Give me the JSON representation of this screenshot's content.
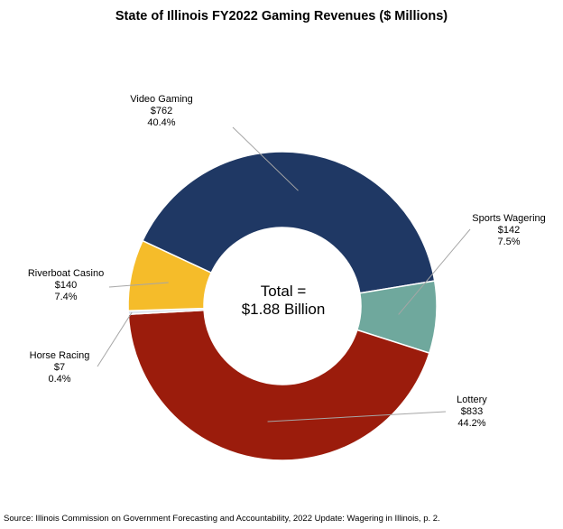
{
  "chart_data": {
    "type": "pie",
    "title": "State of Illinois FY2022 Gaming Revenues ($ Millions)",
    "center_label_line1": "Total =",
    "center_label_line2": "$1.88 Billion",
    "slices": [
      {
        "name": "Video Gaming",
        "value_label": "$762",
        "percent_label": "40.4%",
        "value": 762,
        "percent": 40.4,
        "color": "#1f3864"
      },
      {
        "name": "Sports Wagering",
        "value_label": "$142",
        "percent_label": "7.5%",
        "value": 142,
        "percent": 7.5,
        "color": "#6fa89d"
      },
      {
        "name": "Lottery",
        "value_label": "$833",
        "percent_label": "44.2%",
        "value": 833,
        "percent": 44.2,
        "color": "#9b1c0c"
      },
      {
        "name": "Horse Racing",
        "value_label": "$7",
        "percent_label": "0.4%",
        "value": 7,
        "percent": 0.4,
        "color": "#dde6ef"
      },
      {
        "name": "Riverboat Casino",
        "value_label": "$140",
        "percent_label": "7.4%",
        "value": 140,
        "percent": 7.4,
        "color": "#f5bc2a"
      }
    ],
    "legend": "none"
  },
  "source": "Source: Illinois Commission  on Government Forecasting and Accountability, 2022 Update: Wagering in  Illinois,  p. 2."
}
